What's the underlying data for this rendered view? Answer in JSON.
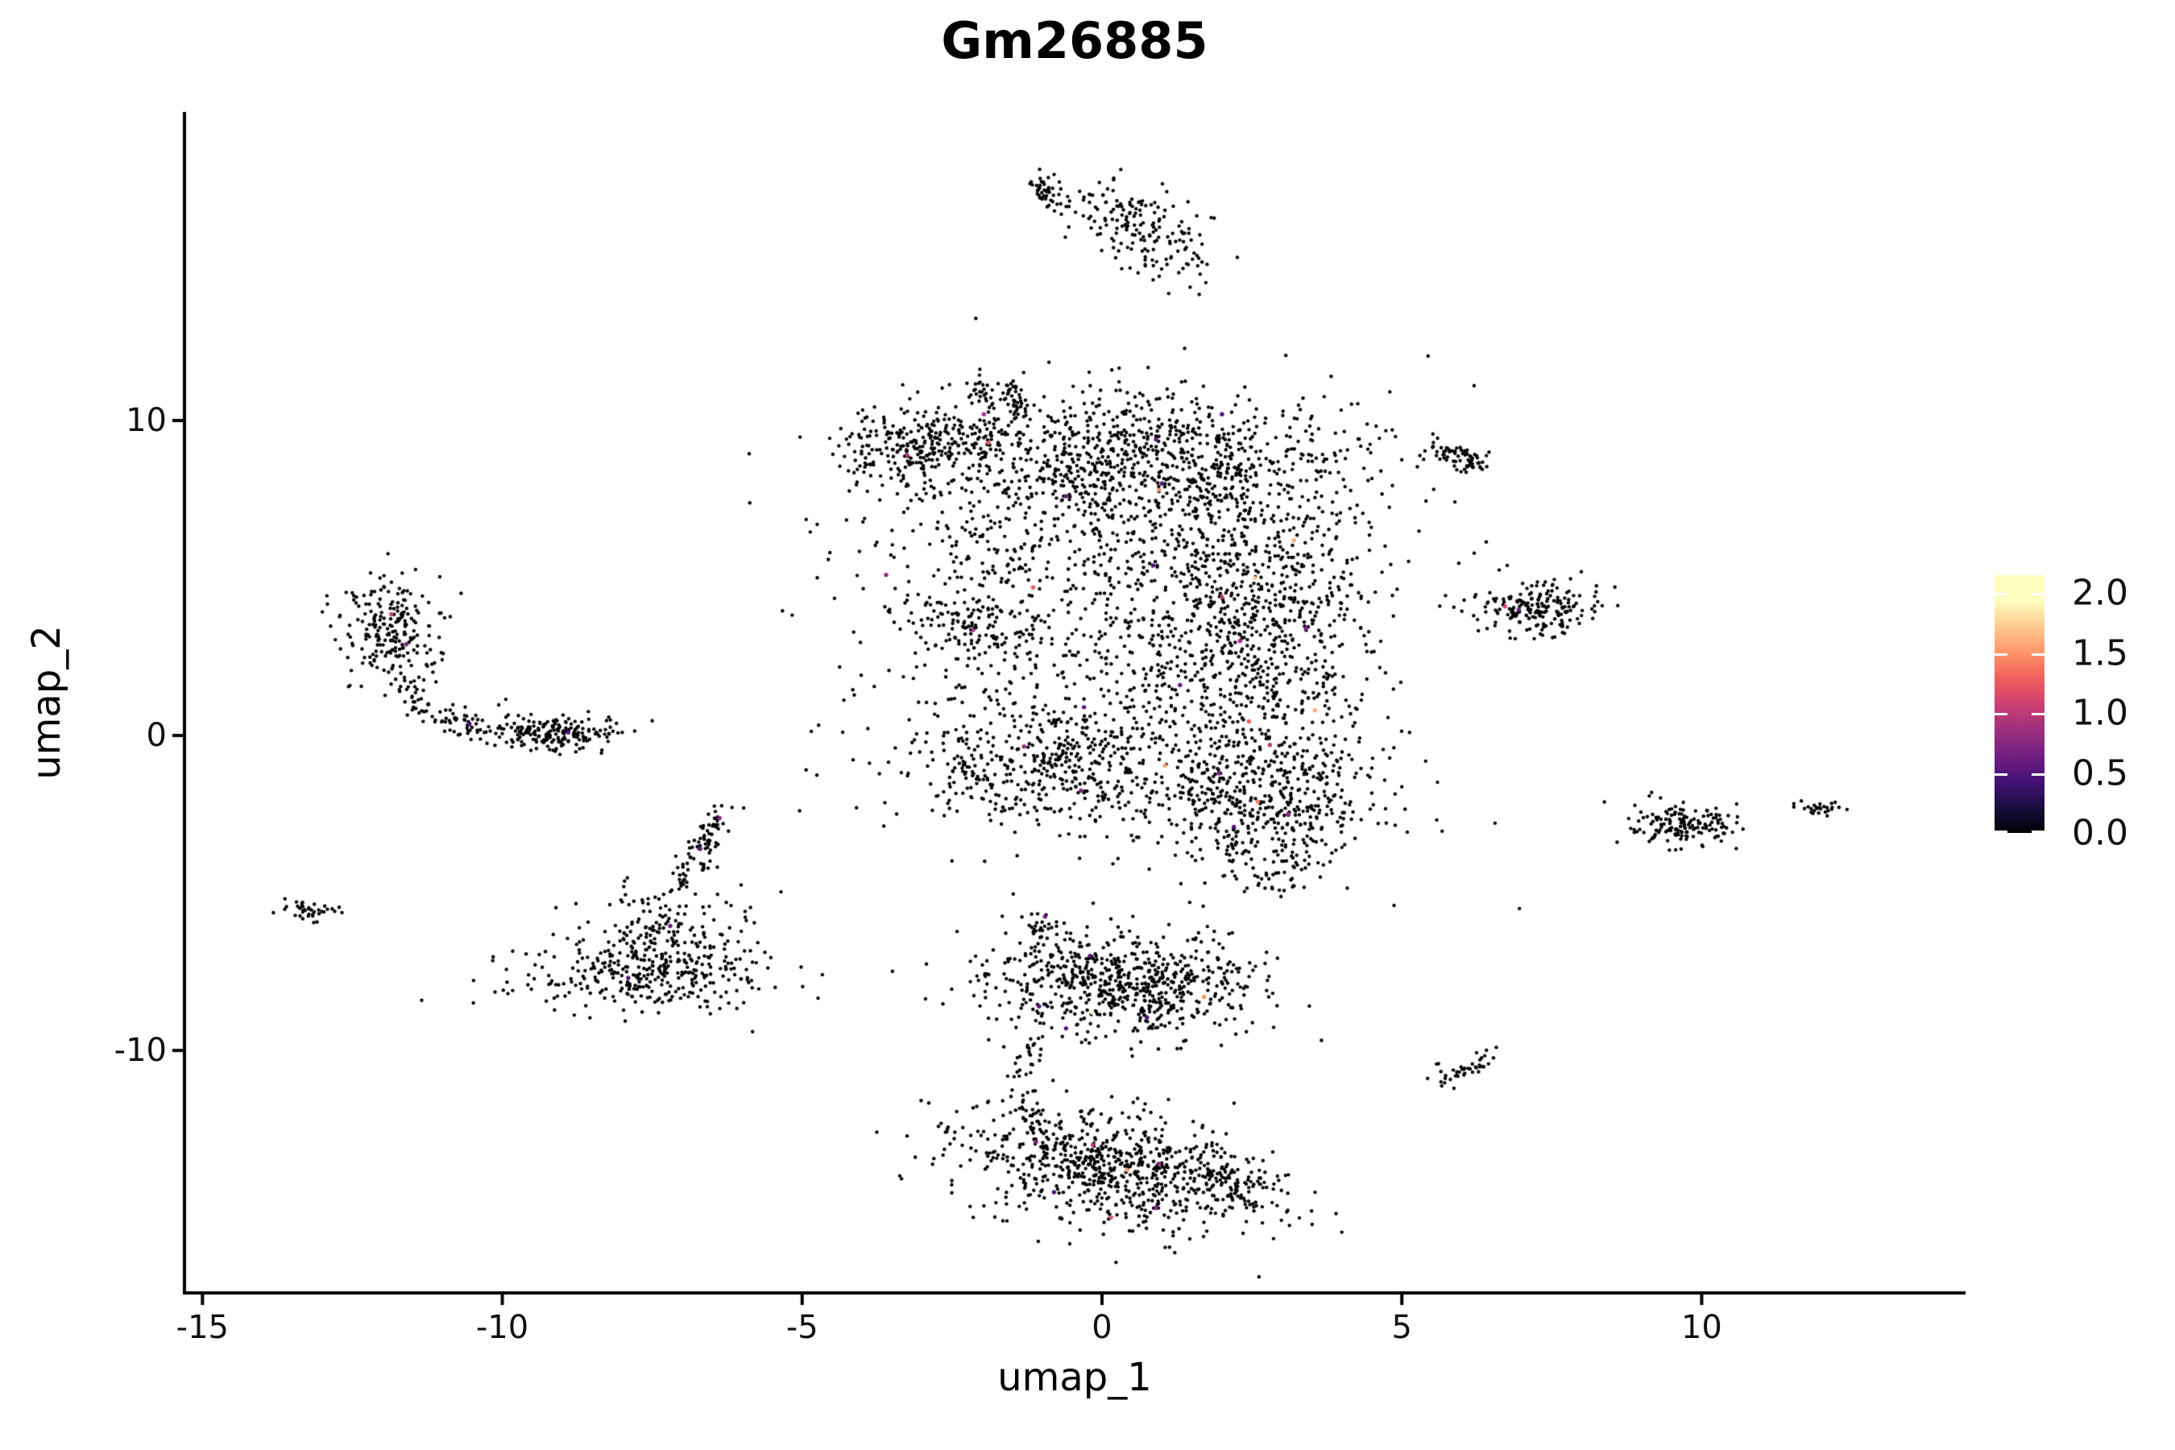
{
  "chart_data": {
    "type": "scatter",
    "title": "Gm26885",
    "xlabel": "umap_1",
    "ylabel": "umap_2",
    "xlim": [
      -15.3,
      14.4
    ],
    "ylim": [
      -17.7,
      19.8
    ],
    "x_tick_values": [
      -15,
      -10,
      -5,
      0,
      5,
      10
    ],
    "x_tick_labels": [
      "-15",
      "-10",
      "-5",
      "0",
      "5",
      "10"
    ],
    "y_tick_values": [
      10,
      0,
      -10
    ],
    "y_tick_labels": [
      "10",
      "0",
      "-10"
    ],
    "grid": false,
    "background_color": "#ffffff",
    "axis_color": "#000000",
    "point": {
      "color": "#000004",
      "radius": 2.2,
      "highlight_radius": 2.7
    },
    "colorbar": {
      "labels": [
        "2.0",
        "1.5",
        "1.0",
        "0.5",
        "0.0"
      ],
      "values": [
        2.0,
        1.5,
        1.0,
        0.5,
        0.0
      ],
      "vmin": 0.0,
      "vmax": 2.15,
      "colormap": "magma",
      "position": "right",
      "stops": [
        {
          "t": 0.0,
          "color": "#000004"
        },
        {
          "t": 0.1,
          "color": "#180f3e"
        },
        {
          "t": 0.2,
          "color": "#451077"
        },
        {
          "t": 0.3,
          "color": "#721f81"
        },
        {
          "t": 0.4,
          "color": "#9f2f7f"
        },
        {
          "t": 0.5,
          "color": "#cd4071"
        },
        {
          "t": 0.6,
          "color": "#f1605d"
        },
        {
          "t": 0.7,
          "color": "#fd9567"
        },
        {
          "t": 0.8,
          "color": "#feca8d"
        },
        {
          "t": 0.9,
          "color": "#fcfdbf"
        },
        {
          "t": 1.0,
          "color": "#fcfdbf"
        }
      ]
    },
    "clusters": [
      {
        "name": "central-left-arm",
        "type": "line",
        "x1": -4.1,
        "y1": 9.0,
        "x2": -1.9,
        "y2": 9.6,
        "w": 0.28,
        "n": 230
      },
      {
        "name": "central-left-arm-trail",
        "type": "line",
        "x1": -3.3,
        "y1": 8.2,
        "x2": -2.6,
        "y2": 7.6,
        "w": 0.3,
        "n": 14
      },
      {
        "name": "central-top-hook-a",
        "type": "line",
        "x1": -2.1,
        "y1": 11.1,
        "x2": -1.9,
        "y2": 10.7,
        "w": 0.08,
        "n": 22
      },
      {
        "name": "central-top-hook-b",
        "type": "line",
        "x1": -1.55,
        "y1": 11.05,
        "x2": -1.35,
        "y2": 10.1,
        "w": 0.1,
        "n": 40
      },
      {
        "name": "central-top-band",
        "type": "gauss",
        "cx": 0.4,
        "cy": 8.9,
        "sx": 2.0,
        "sy": 1.0,
        "n": 880
      },
      {
        "name": "central-upper-scatter",
        "type": "gauss",
        "cx": 0.3,
        "cy": 6.3,
        "sx": 2.2,
        "sy": 1.2,
        "n": 400
      },
      {
        "name": "central-midleft-blob",
        "type": "gauss",
        "cx": -2.05,
        "cy": 3.6,
        "sx": 0.5,
        "sy": 0.55,
        "n": 130
      },
      {
        "name": "central-right-band",
        "type": "gauss",
        "cx": 2.55,
        "cy": 3.2,
        "sx": 0.95,
        "sy": 2.6,
        "n": 760
      },
      {
        "name": "central-sparse-core",
        "type": "gauss",
        "cx": 0.4,
        "cy": 2.2,
        "sx": 1.7,
        "sy": 2.0,
        "n": 320
      },
      {
        "name": "central-fill",
        "type": "gauss",
        "cx": 0.3,
        "cy": 3.5,
        "sx": 2.5,
        "sy": 3.5,
        "n": 240
      },
      {
        "name": "central-lower-left",
        "type": "gauss",
        "cx": -0.9,
        "cy": -0.9,
        "sx": 1.25,
        "sy": 1.0,
        "n": 470
      },
      {
        "name": "central-lower-right",
        "type": "gauss",
        "cx": 2.6,
        "cy": -2.0,
        "sx": 1.05,
        "sy": 1.1,
        "n": 460
      },
      {
        "name": "central-bottom-tail",
        "type": "gauss",
        "cx": 3.0,
        "cy": -4.1,
        "sx": 0.5,
        "sy": 0.55,
        "n": 70
      },
      {
        "name": "top-streak-small",
        "type": "line",
        "x1": -1.15,
        "y1": 17.6,
        "x2": -0.72,
        "y2": 17.0,
        "w": 0.09,
        "n": 45
      },
      {
        "name": "top-streak-dots",
        "type": "line",
        "x1": -0.6,
        "y1": 16.9,
        "x2": -0.1,
        "y2": 16.5,
        "w": 0.15,
        "n": 9
      },
      {
        "name": "top-streak-main",
        "type": "line",
        "x1": -0.05,
        "y1": 16.7,
        "x2": 1.55,
        "y2": 15.3,
        "w": 0.33,
        "n": 170
      },
      {
        "name": "left-c-top",
        "type": "gauss",
        "cx": -11.85,
        "cy": 3.4,
        "sx": 0.42,
        "sy": 0.85,
        "n": 220
      },
      {
        "name": "left-c-tail",
        "type": "path",
        "pts": [
          [
            -11.75,
            2.1
          ],
          [
            -11.4,
            0.9
          ],
          [
            -10.8,
            0.45
          ],
          [
            -10.2,
            0.2
          ]
        ],
        "w": 0.12,
        "n": 80
      },
      {
        "name": "left-c-dots",
        "type": "line",
        "x1": -10.05,
        "y1": 0.75,
        "x2": -9.7,
        "y2": 0.3,
        "w": 0.2,
        "n": 9
      },
      {
        "name": "left-blob-right",
        "type": "gauss",
        "cx": -9.05,
        "cy": 0.1,
        "sx": 0.52,
        "sy": 0.26,
        "n": 190
      },
      {
        "name": "triangle-base",
        "type": "gauss",
        "cx": -7.5,
        "cy": -7.6,
        "sx": 1.05,
        "sy": 0.55,
        "n": 320
      },
      {
        "name": "triangle-mid",
        "type": "gauss",
        "cx": -7.35,
        "cy": -6.2,
        "sx": 0.7,
        "sy": 0.65,
        "n": 150
      },
      {
        "name": "triangle-stem",
        "type": "path",
        "pts": [
          [
            -7.1,
            -5.0
          ],
          [
            -6.8,
            -4.0
          ],
          [
            -6.55,
            -3.2
          ],
          [
            -6.35,
            -2.55
          ]
        ],
        "w": 0.14,
        "n": 90
      },
      {
        "name": "bottom-upper-lobe",
        "type": "gauss",
        "cx": 0.35,
        "cy": -7.9,
        "sx": 1.15,
        "sy": 0.8,
        "n": 700,
        "rot": 3
      },
      {
        "name": "bottom-upper-nub",
        "type": "line",
        "x1": -1.1,
        "y1": -5.8,
        "x2": -0.95,
        "y2": -6.6,
        "w": 0.12,
        "n": 25
      },
      {
        "name": "bottom-connector",
        "type": "path",
        "pts": [
          [
            -1.2,
            -9.9
          ],
          [
            -1.3,
            -10.9
          ],
          [
            -1.25,
            -11.9
          ],
          [
            -0.95,
            -12.4
          ]
        ],
        "w": 0.13,
        "n": 55
      },
      {
        "name": "bottom-lower-lobe",
        "type": "gauss",
        "cx": 0.3,
        "cy": -13.8,
        "sx": 1.35,
        "sy": 0.9,
        "n": 800,
        "rot": 8
      },
      {
        "name": "bottom-lower-tail",
        "type": "line",
        "x1": 1.9,
        "y1": -14.1,
        "x2": 2.6,
        "y2": -14.6,
        "w": 0.18,
        "n": 55
      },
      {
        "name": "right-blob-a",
        "type": "gauss",
        "cx": 5.95,
        "cy": 8.85,
        "sx": 0.3,
        "sy": 0.2,
        "n": 70,
        "rot": 15
      },
      {
        "name": "right-blob-b",
        "type": "gauss",
        "cx": 7.3,
        "cy": 4.05,
        "sx": 0.5,
        "sy": 0.4,
        "n": 200
      },
      {
        "name": "right-blob-c",
        "type": "gauss",
        "cx": 9.7,
        "cy": -2.9,
        "sx": 0.45,
        "sy": 0.33,
        "n": 150
      },
      {
        "name": "right-blob-d",
        "type": "gauss",
        "cx": 12.0,
        "cy": -2.3,
        "sx": 0.2,
        "sy": 0.13,
        "n": 25
      },
      {
        "name": "right-dot-e",
        "type": "gauss",
        "cx": 11.55,
        "cy": -2.25,
        "sx": 0.05,
        "sy": 0.05,
        "n": 2
      },
      {
        "name": "right-blob-f",
        "type": "gauss",
        "cx": 6.05,
        "cy": -10.6,
        "sx": 0.3,
        "sy": 0.16,
        "n": 40,
        "rot": -25
      },
      {
        "name": "right-dot-f2",
        "type": "gauss",
        "cx": 5.6,
        "cy": -10.45,
        "sx": 0.04,
        "sy": 0.04,
        "n": 2
      },
      {
        "name": "left-tiny-x",
        "type": "gauss",
        "cx": -13.25,
        "cy": -5.55,
        "sx": 0.25,
        "sy": 0.2,
        "n": 40
      }
    ],
    "expressing_points": [
      [
        -3.25,
        8.9,
        0.9
      ],
      [
        -1.97,
        10.2,
        0.9
      ],
      [
        -1.9,
        9.3,
        1.2
      ],
      [
        0.9,
        9.4,
        0.55
      ],
      [
        2.0,
        10.2,
        0.5
      ],
      [
        1.0,
        8.0,
        0.5
      ],
      [
        -0.6,
        7.6,
        0.6
      ],
      [
        0.95,
        7.8,
        1.5
      ],
      [
        3.2,
        6.2,
        1.6
      ],
      [
        2.55,
        5.0,
        1.7
      ],
      [
        -1.15,
        4.7,
        1.3
      ],
      [
        -3.6,
        5.1,
        0.8
      ],
      [
        -2.15,
        3.35,
        0.9
      ],
      [
        0.85,
        5.4,
        0.45
      ],
      [
        2.0,
        4.4,
        1.0
      ],
      [
        2.3,
        3.0,
        0.9
      ],
      [
        3.4,
        3.4,
        0.7
      ],
      [
        1.3,
        1.6,
        0.6
      ],
      [
        -0.3,
        0.9,
        0.55
      ],
      [
        2.45,
        0.45,
        1.3
      ],
      [
        2.8,
        -0.3,
        1.0
      ],
      [
        1.95,
        -1.2,
        0.65
      ],
      [
        -1.3,
        -0.35,
        0.8
      ],
      [
        -0.35,
        -1.75,
        0.7
      ],
      [
        2.6,
        -2.1,
        1.4
      ],
      [
        3.1,
        -2.5,
        0.8
      ],
      [
        2.2,
        -2.9,
        0.5
      ],
      [
        3.55,
        0.8,
        1.6
      ],
      [
        1.05,
        -0.95,
        1.55
      ],
      [
        -11.85,
        3.85,
        1.1
      ],
      [
        -11.6,
        2.9,
        0.7
      ],
      [
        -10.55,
        0.35,
        0.5
      ],
      [
        -8.9,
        0.1,
        0.5
      ],
      [
        -6.38,
        -2.62,
        0.7
      ],
      [
        -6.7,
        -3.6,
        0.6
      ],
      [
        -7.2,
        -6.05,
        0.6
      ],
      [
        -7.9,
        -7.7,
        0.5
      ],
      [
        -0.95,
        -5.75,
        0.6
      ],
      [
        -0.2,
        -7.0,
        0.5
      ],
      [
        1.7,
        -8.3,
        1.5
      ],
      [
        -0.16,
        -8.8,
        2.0
      ],
      [
        -1.05,
        -8.6,
        0.55
      ],
      [
        0.75,
        -8.95,
        0.45
      ],
      [
        -0.6,
        -9.3,
        0.5
      ],
      [
        -1.1,
        -12.9,
        0.7
      ],
      [
        -0.15,
        -13.0,
        0.9
      ],
      [
        0.42,
        -13.8,
        1.55
      ],
      [
        0.95,
        -13.6,
        0.8
      ],
      [
        -0.8,
        -14.5,
        0.45
      ],
      [
        0.15,
        -15.3,
        1.2
      ],
      [
        0.9,
        -15.0,
        0.7
      ],
      [
        6.72,
        4.1,
        1.1
      ],
      [
        6.95,
        4.0,
        0.6
      ]
    ]
  }
}
